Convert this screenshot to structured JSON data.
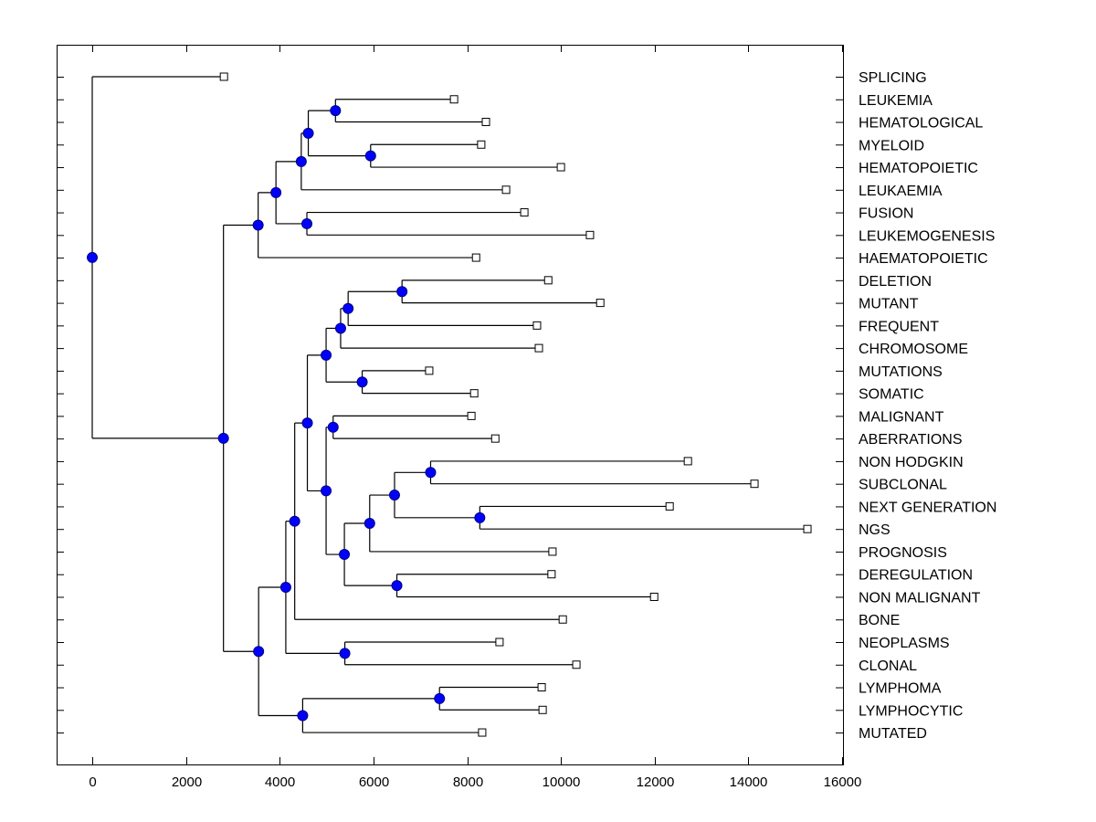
{
  "chart_data": {
    "type": "dendrogram",
    "title": "",
    "xlabel": "",
    "ylabel": "",
    "xlim": [
      -750,
      16000
    ],
    "x_ticks": [
      0,
      2000,
      4000,
      6000,
      8000,
      10000,
      12000,
      14000,
      16000
    ],
    "x_tick_labels": [
      "0",
      "2000",
      "4000",
      "6000",
      "8000",
      "10000",
      "12000",
      "14000",
      "16000"
    ],
    "grid": false,
    "leaf_marker": "open-square",
    "node_marker": "filled-circle",
    "colors": {
      "node_fill": "#0000ff",
      "node_stroke": "#000080",
      "line": "#000000",
      "leaf_fill": "#ffffff"
    },
    "leaves": [
      {
        "label": "SPLICING",
        "x": 2810
      },
      {
        "label": "LEUKEMIA",
        "x": 7720
      },
      {
        "label": "HEMATOLOGICAL",
        "x": 8400
      },
      {
        "label": "MYELOID",
        "x": 8300
      },
      {
        "label": "HEMATOPOIETIC",
        "x": 10000
      },
      {
        "label": "LEUKAEMIA",
        "x": 8830
      },
      {
        "label": "FUSION",
        "x": 9220
      },
      {
        "label": "LEUKEMOGENESIS",
        "x": 10620
      },
      {
        "label": "HAEMATOPOIETIC",
        "x": 8190
      },
      {
        "label": "DELETION",
        "x": 9730
      },
      {
        "label": "MUTANT",
        "x": 10840
      },
      {
        "label": "FREQUENT",
        "x": 9490
      },
      {
        "label": "CHROMOSOME",
        "x": 9530
      },
      {
        "label": "MUTATIONS",
        "x": 7190
      },
      {
        "label": "SOMATIC",
        "x": 8150
      },
      {
        "label": "MALIGNANT",
        "x": 8090
      },
      {
        "label": "ABERRATIONS",
        "x": 8600
      },
      {
        "label": "NON HODGKIN",
        "x": 12710
      },
      {
        "label": "SUBCLONAL",
        "x": 14130
      },
      {
        "label": "NEXT GENERATION",
        "x": 12320
      },
      {
        "label": "NGS",
        "x": 15260
      },
      {
        "label": "PROGNOSIS",
        "x": 9820
      },
      {
        "label": "DEREGULATION",
        "x": 9800
      },
      {
        "label": "NON MALIGNANT",
        "x": 11990
      },
      {
        "label": "BONE",
        "x": 10040
      },
      {
        "label": "NEOPLASMS",
        "x": 8690
      },
      {
        "label": "CLONAL",
        "x": 10330
      },
      {
        "label": "LYMPHOMA",
        "x": 9590
      },
      {
        "label": "LYMPHOCYTIC",
        "x": 9610
      },
      {
        "label": "MUTATED",
        "x": 8320
      }
    ],
    "tree": {
      "x": 0,
      "children": [
        {
          "leaf": 0
        },
        {
          "x": 2800,
          "children": [
            {
              "x": 3540,
              "children": [
                {
                  "x": 3920,
                  "children": [
                    {
                      "x": 4460,
                      "children": [
                        {
                          "x": 4610,
                          "children": [
                            {
                              "x": 5190,
                              "children": [
                                {
                                  "leaf": 1
                                },
                                {
                                  "leaf": 2
                                }
                              ]
                            },
                            {
                              "x": 5940,
                              "children": [
                                {
                                  "leaf": 3
                                },
                                {
                                  "leaf": 4
                                }
                              ]
                            }
                          ]
                        },
                        {
                          "leaf": 5
                        }
                      ]
                    },
                    {
                      "x": 4580,
                      "children": [
                        {
                          "leaf": 6
                        },
                        {
                          "leaf": 7
                        }
                      ]
                    }
                  ]
                },
                {
                  "leaf": 8
                }
              ]
            },
            {
              "x": 3550,
              "children": [
                {
                  "x": 4130,
                  "children": [
                    {
                      "x": 4320,
                      "children": [
                        {
                          "x": 4590,
                          "children": [
                            {
                              "x": 4990,
                              "children": [
                                {
                                  "x": 5300,
                                  "children": [
                                    {
                                      "x": 5460,
                                      "children": [
                                        {
                                          "x": 6610,
                                          "children": [
                                            {
                                              "leaf": 9
                                            },
                                            {
                                              "leaf": 10
                                            }
                                          ]
                                        },
                                        {
                                          "leaf": 11
                                        }
                                      ]
                                    },
                                    {
                                      "leaf": 12
                                    }
                                  ]
                                },
                                {
                                  "x": 5760,
                                  "children": [
                                    {
                                      "leaf": 13
                                    },
                                    {
                                      "leaf": 14
                                    }
                                  ]
                                }
                              ]
                            },
                            {
                              "x": 4990,
                              "children": [
                                {
                                  "x": 5140,
                                  "children": [
                                    {
                                      "leaf": 15
                                    },
                                    {
                                      "leaf": 16
                                    }
                                  ]
                                },
                                {
                                  "x": 5380,
                                  "children": [
                                    {
                                      "x": 5920,
                                      "children": [
                                        {
                                          "x": 6450,
                                          "children": [
                                            {
                                              "x": 7220,
                                              "children": [
                                                {
                                                  "leaf": 17
                                                },
                                                {
                                                  "leaf": 18
                                                }
                                              ]
                                            },
                                            {
                                              "x": 8270,
                                              "children": [
                                                {
                                                  "leaf": 19
                                                },
                                                {
                                                  "leaf": 20
                                                }
                                              ]
                                            }
                                          ]
                                        },
                                        {
                                          "leaf": 21
                                        }
                                      ]
                                    },
                                    {
                                      "x": 6500,
                                      "children": [
                                        {
                                          "leaf": 22
                                        },
                                        {
                                          "leaf": 23
                                        }
                                      ]
                                    }
                                  ]
                                }
                              ]
                            }
                          ]
                        },
                        {
                          "leaf": 24
                        }
                      ]
                    },
                    {
                      "x": 5390,
                      "children": [
                        {
                          "leaf": 25
                        },
                        {
                          "leaf": 26
                        }
                      ]
                    }
                  ]
                },
                {
                  "x": 4490,
                  "children": [
                    {
                      "x": 7410,
                      "children": [
                        {
                          "leaf": 27
                        },
                        {
                          "leaf": 28
                        }
                      ]
                    },
                    {
                      "leaf": 29
                    }
                  ]
                }
              ]
            }
          ]
        }
      ]
    }
  }
}
